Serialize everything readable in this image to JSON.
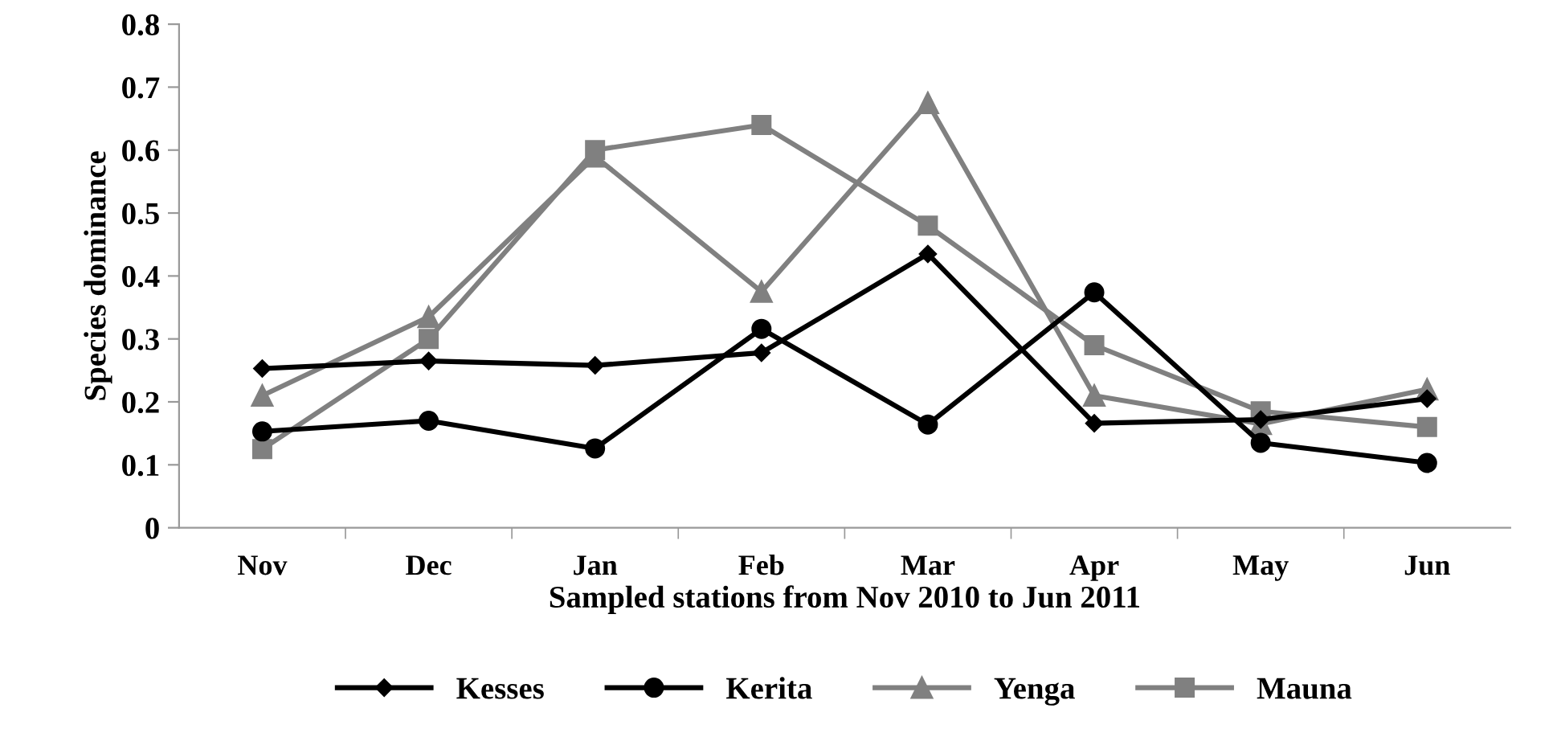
{
  "chart_data": {
    "type": "line",
    "xlabel": "Sampled stations from Nov 2010 to Jun 2011",
    "ylabel": "Species dominance",
    "categories": [
      "Nov",
      "Dec",
      "Jan",
      "Feb",
      "Mar",
      "Apr",
      "May",
      "Jun"
    ],
    "series": [
      {
        "name": "Kesses",
        "color": "#000000",
        "marker": "diamond",
        "values": [
          0.253,
          0.265,
          0.258,
          0.278,
          0.435,
          0.166,
          0.172,
          0.205
        ]
      },
      {
        "name": "Kerita",
        "color": "#000000",
        "marker": "circle",
        "values": [
          0.153,
          0.17,
          0.126,
          0.316,
          0.164,
          0.374,
          0.135,
          0.103
        ]
      },
      {
        "name": "Yenga",
        "color": "#808080",
        "marker": "triangle",
        "values": [
          0.21,
          0.335,
          0.59,
          0.375,
          0.675,
          0.21,
          0.165,
          0.22
        ]
      },
      {
        "name": "Mauna",
        "color": "#808080",
        "marker": "square",
        "values": [
          0.125,
          0.3,
          0.6,
          0.64,
          0.48,
          0.29,
          0.185,
          0.16
        ]
      }
    ],
    "ylim": [
      0,
      0.8
    ],
    "yticks": [
      {
        "value": 0,
        "label": "0"
      },
      0.1,
      0.2,
      0.3,
      0.4,
      0.5,
      0.6,
      0.7,
      0.8
    ],
    "grid": false,
    "legend": "bottom"
  }
}
